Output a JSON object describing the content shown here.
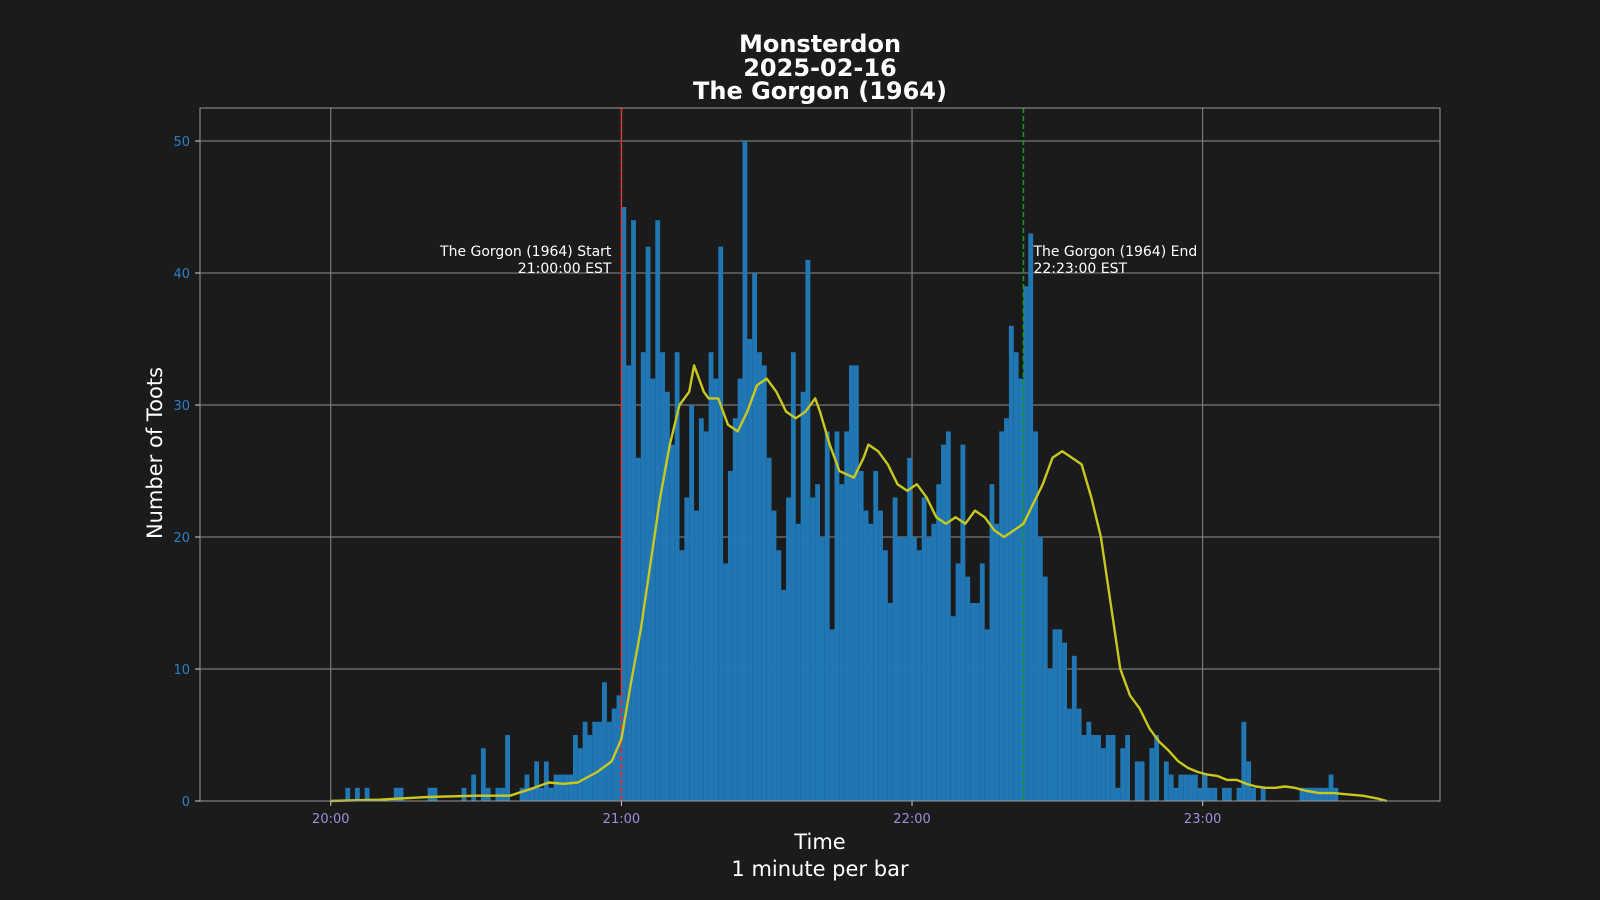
{
  "chart_data": {
    "type": "bar",
    "title_lines": [
      "Monsterdon",
      "2025-02-16",
      "The Gorgon (1964)"
    ],
    "xlabel_lines": [
      "Time",
      "1 minute per bar"
    ],
    "ylabel": "Number of Toots",
    "ylim": [
      0,
      52.5
    ],
    "yticks": [
      0,
      10,
      20,
      30,
      40,
      50
    ],
    "xlim_minutes_after_2000": [
      -27,
      229
    ],
    "xticks": [
      {
        "minute": 0,
        "label": "20:00"
      },
      {
        "minute": 60,
        "label": "21:00"
      },
      {
        "minute": 120,
        "label": "22:00"
      },
      {
        "minute": 180,
        "label": "23:00"
      }
    ],
    "bar_width_minutes": 1,
    "grid": true,
    "colors": {
      "background": "#1b1b1b",
      "bars": "#2077b4",
      "smooth_line": "#c8c81e",
      "start_line": "#ff2020",
      "end_line": "#1a9a1a",
      "grid": "#8c8c8c",
      "ytick": "#2a7fc9",
      "xtick": "#9a8fd8"
    },
    "series": [
      {
        "type": "bar",
        "x_start_minute": 0,
        "values": [
          0,
          0,
          0,
          1,
          0,
          1,
          0,
          1,
          0,
          0,
          0,
          0,
          0,
          1,
          1,
          0,
          0,
          0,
          0,
          0,
          1,
          1,
          0,
          0,
          0,
          0,
          0,
          1,
          0,
          2,
          0,
          4,
          1,
          0,
          1,
          1,
          5,
          0,
          0,
          1,
          2,
          1,
          3,
          1,
          3,
          1,
          2,
          2,
          2,
          2,
          5,
          4,
          6,
          5,
          6,
          6,
          9,
          6,
          7,
          8,
          45,
          33,
          44,
          26,
          34,
          42,
          32,
          44,
          34,
          31,
          27,
          34,
          19,
          23,
          30,
          22,
          29,
          28,
          34,
          32,
          42,
          18,
          25,
          29,
          32,
          50,
          35,
          40,
          34,
          33,
          26,
          22,
          19,
          16,
          23,
          34,
          21,
          31,
          41,
          23,
          24,
          20,
          28,
          13,
          28,
          24,
          28,
          33,
          33,
          25,
          22,
          21,
          25,
          22,
          19,
          15,
          23,
          20,
          20,
          26,
          20,
          19,
          23,
          20,
          21,
          24,
          27,
          28,
          14,
          18,
          27,
          17,
          15,
          15,
          18,
          13,
          24,
          21,
          28,
          29,
          36,
          34,
          32,
          39,
          43,
          28,
          20,
          17,
          10,
          13,
          13,
          12,
          7,
          11,
          7,
          5,
          6,
          5,
          5,
          4,
          5,
          5,
          1,
          4,
          5,
          0,
          3,
          3,
          0,
          4,
          5,
          0,
          3,
          2,
          1,
          2,
          2,
          2,
          2,
          1,
          2,
          1,
          1,
          0,
          1,
          1,
          0,
          1,
          6,
          3,
          1,
          0,
          1,
          0,
          0,
          0,
          0,
          0,
          0,
          0,
          1,
          1,
          1,
          1,
          1,
          1,
          2,
          1,
          0,
          0
        ]
      },
      {
        "type": "line",
        "points": [
          [
            0,
            0
          ],
          [
            10,
            0.1
          ],
          [
            20,
            0.3
          ],
          [
            30,
            0.4
          ],
          [
            37,
            0.4
          ],
          [
            42,
            1
          ],
          [
            45,
            1.4
          ],
          [
            48,
            1.3
          ],
          [
            51,
            1.4
          ],
          [
            55,
            2.2
          ],
          [
            58,
            3
          ],
          [
            60,
            4.7
          ],
          [
            62,
            9
          ],
          [
            64,
            13
          ],
          [
            66,
            18
          ],
          [
            68,
            23
          ],
          [
            70,
            27
          ],
          [
            72,
            30
          ],
          [
            74,
            31
          ],
          [
            75,
            33
          ],
          [
            77,
            31
          ],
          [
            78,
            30.5
          ],
          [
            80,
            30.5
          ],
          [
            81,
            29.5
          ],
          [
            82,
            28.5
          ],
          [
            84,
            28
          ],
          [
            86,
            29.5
          ],
          [
            88,
            31.5
          ],
          [
            90,
            32
          ],
          [
            92,
            31
          ],
          [
            94,
            29.5
          ],
          [
            96,
            29
          ],
          [
            98,
            29.5
          ],
          [
            100,
            30.5
          ],
          [
            101,
            29.5
          ],
          [
            103,
            27
          ],
          [
            105,
            25
          ],
          [
            108,
            24.5
          ],
          [
            110,
            26
          ],
          [
            111,
            27
          ],
          [
            113,
            26.5
          ],
          [
            115,
            25.5
          ],
          [
            117,
            24
          ],
          [
            119,
            23.5
          ],
          [
            121,
            24
          ],
          [
            123,
            23
          ],
          [
            125,
            21.5
          ],
          [
            127,
            21
          ],
          [
            129,
            21.5
          ],
          [
            131,
            21
          ],
          [
            133,
            22
          ],
          [
            135,
            21.5
          ],
          [
            137,
            20.5
          ],
          [
            139,
            20
          ],
          [
            141,
            20.5
          ],
          [
            143,
            21
          ],
          [
            145,
            22.5
          ],
          [
            147,
            24
          ],
          [
            149,
            26
          ],
          [
            151,
            26.5
          ],
          [
            153,
            26
          ],
          [
            155,
            25.5
          ],
          [
            157,
            23
          ],
          [
            159,
            20
          ],
          [
            161,
            15
          ],
          [
            163,
            10
          ],
          [
            165,
            8
          ],
          [
            167,
            7
          ],
          [
            169,
            5.5
          ],
          [
            171,
            4.5
          ],
          [
            173,
            3.8
          ],
          [
            175,
            3
          ],
          [
            177,
            2.5
          ],
          [
            179,
            2.2
          ],
          [
            181,
            2
          ],
          [
            183,
            1.9
          ],
          [
            185,
            1.6
          ],
          [
            187,
            1.6
          ],
          [
            189,
            1.3
          ],
          [
            191,
            1.1
          ],
          [
            193,
            1
          ],
          [
            195,
            1
          ],
          [
            197,
            1.1
          ],
          [
            199,
            1
          ],
          [
            201,
            0.8
          ],
          [
            204,
            0.6
          ],
          [
            207,
            0.6
          ],
          [
            210,
            0.5
          ],
          [
            213,
            0.4
          ],
          [
            216,
            0.2
          ],
          [
            218,
            0
          ]
        ]
      }
    ],
    "annotations": [
      {
        "minute": 60,
        "lines": [
          "The Gorgon (1964) Start",
          "21:00:00 EST"
        ],
        "align": "right",
        "line_color": "#ff2020"
      },
      {
        "minute": 143,
        "lines": [
          "The Gorgon (1964) End",
          "22:23:00 EST"
        ],
        "align": "left",
        "line_color": "#1a9a1a"
      }
    ]
  }
}
